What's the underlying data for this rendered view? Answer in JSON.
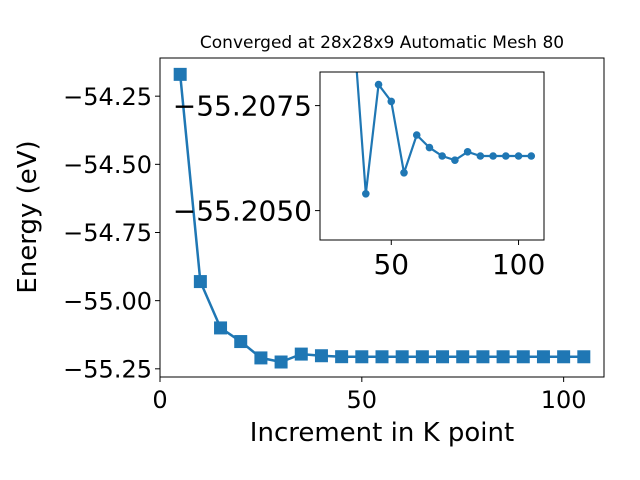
{
  "chart_data": [
    {
      "type": "line",
      "title": "Converged at 28x28x9 Automatic Mesh 80",
      "xlabel": "Increment in K point",
      "ylabel": "Energy (eV)",
      "xlim": [
        0,
        110
      ],
      "ylim": [
        -55.28,
        -54.11
      ],
      "xticks": [
        0,
        50,
        100
      ],
      "yticks": [
        -54.25,
        -54.5,
        -54.75,
        -55.0,
        -55.25
      ],
      "xtick_labels": [
        "0",
        "50",
        "100"
      ],
      "ytick_labels": [
        "−54.25",
        "−54.50",
        "−54.75",
        "−55.00",
        "−55.25"
      ],
      "marker": "square",
      "color": "#1f77b4",
      "grid": false,
      "series": [
        {
          "x": [
            5,
            10,
            15,
            20,
            25,
            30,
            35,
            40,
            45,
            50,
            55,
            60,
            65,
            70,
            75,
            80,
            85,
            90,
            95,
            100,
            105
          ],
          "y": [
            -54.17,
            -54.93,
            -55.1,
            -55.15,
            -55.21,
            -55.225,
            -55.196,
            -55.202,
            -55.2055,
            -55.2058,
            -55.2058,
            -55.2058,
            -55.2058,
            -55.2058,
            -55.2058,
            -55.2058,
            -55.2058,
            -55.2058,
            -55.2058,
            -55.2058,
            -55.2058
          ]
        }
      ]
    },
    {
      "type": "line",
      "title": "",
      "xlabel": "",
      "ylabel": "",
      "xlim": [
        22,
        110
      ],
      "ylim": [
        -55.2043,
        -55.2083
      ],
      "xticks": [
        50,
        100
      ],
      "yticks": [
        -55.2075,
        -55.205
      ],
      "xtick_labels": [
        "50",
        "100"
      ],
      "ytick_labels": [
        "−55.2075",
        "−55.2050"
      ],
      "marker": "circle",
      "color": "#1f77b4",
      "grid": false,
      "series": [
        {
          "x": [
            35,
            40,
            45,
            50,
            55,
            60,
            65,
            70,
            75,
            80,
            85,
            90,
            95,
            100,
            105
          ],
          "y": [
            -55.2095,
            -55.2054,
            -55.208,
            -55.2076,
            -55.2059,
            -55.2068,
            -55.2065,
            -55.2063,
            -55.2062,
            -55.2064,
            -55.2063,
            -55.2063,
            -55.2063,
            -55.2063,
            -55.2063
          ]
        }
      ]
    }
  ]
}
